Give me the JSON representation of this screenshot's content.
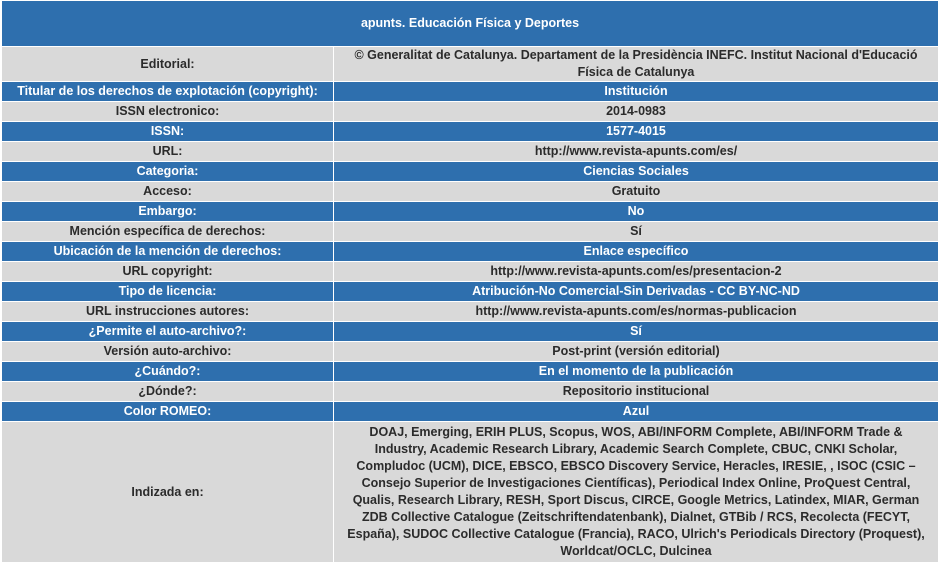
{
  "title": "apunts. Educación Física y Deportes",
  "rows": [
    {
      "label": "Editorial:",
      "value": "© Generalitat de Catalunya. Departament de la Presidència INEFC. Institut Nacional d'Educació Física de Catalunya"
    },
    {
      "label": "Titular de los derechos de explotación (copyright):",
      "value": "Institución"
    },
    {
      "label": "ISSN electronico:",
      "value": "2014-0983"
    },
    {
      "label": "ISSN:",
      "value": "1577-4015"
    },
    {
      "label": "URL:",
      "value": "http://www.revista-apunts.com/es/"
    },
    {
      "label": "Categoria:",
      "value": "Ciencias Sociales"
    },
    {
      "label": "Acceso:",
      "value": "Gratuito"
    },
    {
      "label": "Embargo:",
      "value": "No"
    },
    {
      "label": "Mención específica de derechos:",
      "value": "Sí"
    },
    {
      "label": "Ubicación de la mención de derechos:",
      "value": "Enlace específico"
    },
    {
      "label": "URL copyright:",
      "value": "http://www.revista-apunts.com/es/presentacion-2"
    },
    {
      "label": "Tipo de licencia:",
      "value": "Atribución-No Comercial-Sin Derivadas - CC BY-NC-ND"
    },
    {
      "label": "URL instrucciones autores:",
      "value": "http://www.revista-apunts.com/es/normas-publicacion"
    },
    {
      "label": "¿Permite el auto-archivo?:",
      "value": "Sí"
    },
    {
      "label": "Versión auto-archivo:",
      "value": "Post-print (versión editorial)"
    },
    {
      "label": "¿Cuándo?:",
      "value": "En el momento de la publicación"
    },
    {
      "label": "¿Dónde?:",
      "value": "Repositorio institucional"
    },
    {
      "label": "Color ROMEO:",
      "value": "Azul"
    },
    {
      "label": "Indizada en:",
      "value": "DOAJ, Emerging, ERIH PLUS, Scopus, WOS, ABI/INFORM Complete, ABI/INFORM Trade & Industry, Academic Research Library, Academic Search Complete, CBUC, CNKI Scholar, Compludoc (UCM), DICE, EBSCO, EBSCO Discovery Service, Heracles, IRESIE, , ISOC (CSIC – Consejo Superior de Investigaciones Científicas), Periodical Index Online, ProQuest Central, Qualis, Research Library, RESH, Sport Discus, CIRCE, Google Metrics, Latindex, MIAR, German ZDB Collective Catalogue (Zeitschriftendatenbank), Dialnet, GTBib / RCS, Recolecta (FECYT, España), SUDOC Collective Catalogue (Francia), RACO, Ulrich's Periodicals Directory (Proquest), Worldcat/OCLC, Dulcinea"
    }
  ],
  "colors": {
    "header_blue": "#2e6fae",
    "row_gray": "#d9d9d9"
  }
}
